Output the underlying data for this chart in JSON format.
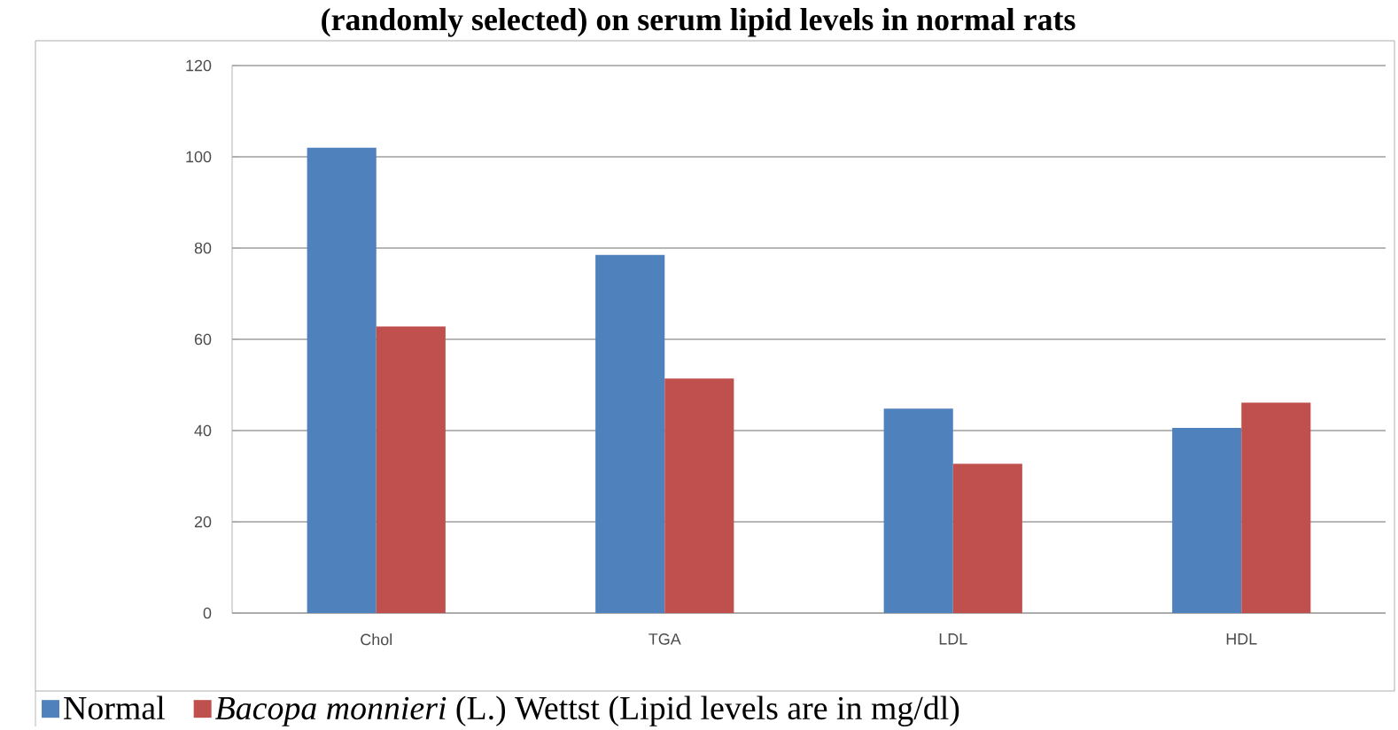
{
  "chart_data": {
    "type": "bar",
    "title": "(randomly selected) on serum lipid levels in normal rats",
    "categories": [
      "Chol",
      "TGA",
      "LDL",
      "HDL"
    ],
    "series": [
      {
        "name": "Normal",
        "color": "#4f81bd",
        "values": [
          102,
          78.5,
          44.8,
          40.6
        ]
      },
      {
        "name": "*Bacopa monnieri* (L.) Wettst (Lipid levels are in mg/dl)",
        "color": "#c0504d",
        "values": [
          62.8,
          51.4,
          32.7,
          46.1
        ]
      }
    ],
    "ylim": [
      0,
      120
    ],
    "yticks": [
      0,
      20,
      40,
      60,
      80,
      100,
      120
    ],
    "grid": "y",
    "legend": "bottom"
  }
}
